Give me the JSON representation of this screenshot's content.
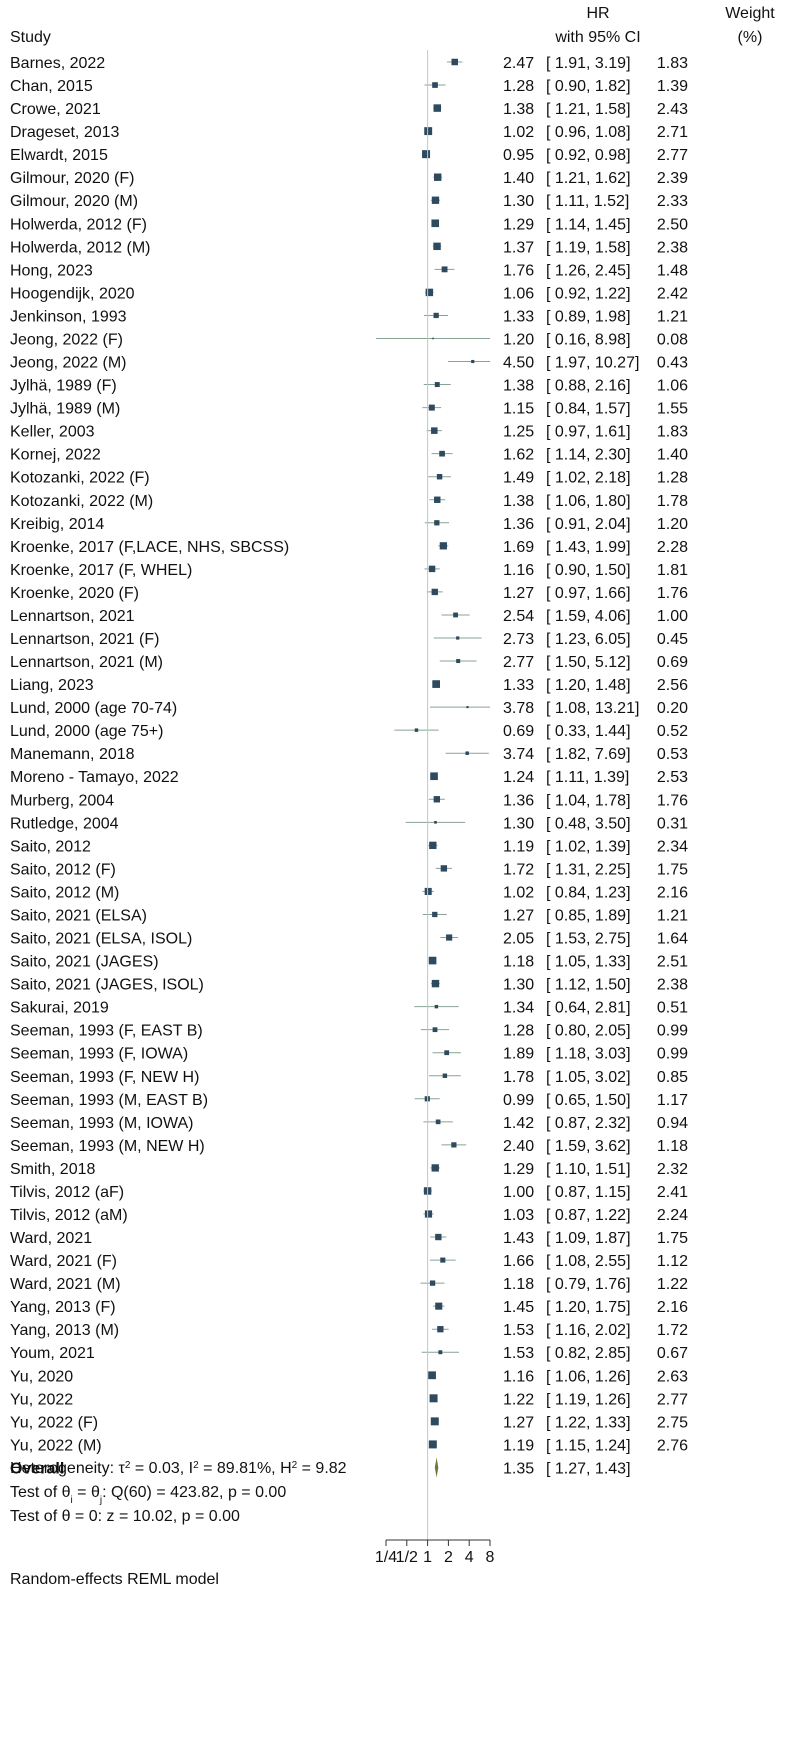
{
  "chart_data": {
    "type": "forest",
    "header": {
      "study": "Study",
      "hr_line1": "HR",
      "hr_line2": "with 95% CI",
      "weight_line1": "Weight",
      "weight_line2": "(%)"
    },
    "x_scale": "log2",
    "xlim": [
      0.25,
      8
    ],
    "x_ticks": [
      0.25,
      0.5,
      1,
      2,
      4,
      8
    ],
    "x_tick_labels": [
      "1/4",
      "1/2",
      "1",
      "2",
      "4",
      "8"
    ],
    "reference_line": 1,
    "marker_color": "#2e4a5e",
    "ci_color": "#8aa292",
    "diamond_color": "#6b7d3a",
    "studies": [
      {
        "label": "Barnes, 2022",
        "hr": 2.47,
        "lo": 1.91,
        "hi": 3.19,
        "hr_text": "2.47",
        "ci_text": "[ 1.91,  3.19]",
        "weight": 1.83,
        "weight_text": "1.83"
      },
      {
        "label": "Chan, 2015",
        "hr": 1.28,
        "lo": 0.9,
        "hi": 1.82,
        "hr_text": "1.28",
        "ci_text": "[ 0.90,  1.82]",
        "weight": 1.39,
        "weight_text": "1.39"
      },
      {
        "label": "Crowe, 2021",
        "hr": 1.38,
        "lo": 1.21,
        "hi": 1.58,
        "hr_text": "1.38",
        "ci_text": "[ 1.21,  1.58]",
        "weight": 2.43,
        "weight_text": "2.43"
      },
      {
        "label": "Drageset, 2013",
        "hr": 1.02,
        "lo": 0.96,
        "hi": 1.08,
        "hr_text": "1.02",
        "ci_text": "[ 0.96,  1.08]",
        "weight": 2.71,
        "weight_text": "2.71"
      },
      {
        "label": "Elwardt, 2015",
        "hr": 0.95,
        "lo": 0.92,
        "hi": 0.98,
        "hr_text": "0.95",
        "ci_text": "[ 0.92,  0.98]",
        "weight": 2.77,
        "weight_text": "2.77"
      },
      {
        "label": "Gilmour, 2020 (F)",
        "hr": 1.4,
        "lo": 1.21,
        "hi": 1.62,
        "hr_text": "1.40",
        "ci_text": "[ 1.21,  1.62]",
        "weight": 2.39,
        "weight_text": "2.39"
      },
      {
        "label": "Gilmour, 2020 (M)",
        "hr": 1.3,
        "lo": 1.11,
        "hi": 1.52,
        "hr_text": "1.30",
        "ci_text": "[ 1.11,  1.52]",
        "weight": 2.33,
        "weight_text": "2.33"
      },
      {
        "label": "Holwerda, 2012 (F)",
        "hr": 1.29,
        "lo": 1.14,
        "hi": 1.45,
        "hr_text": "1.29",
        "ci_text": "[ 1.14,  1.45]",
        "weight": 2.5,
        "weight_text": "2.50"
      },
      {
        "label": "Holwerda, 2012 (M)",
        "hr": 1.37,
        "lo": 1.19,
        "hi": 1.58,
        "hr_text": "1.37",
        "ci_text": "[ 1.19,  1.58]",
        "weight": 2.38,
        "weight_text": "2.38"
      },
      {
        "label": "Hong, 2023",
        "hr": 1.76,
        "lo": 1.26,
        "hi": 2.45,
        "hr_text": "1.76",
        "ci_text": "[ 1.26,  2.45]",
        "weight": 1.48,
        "weight_text": "1.48"
      },
      {
        "label": "Hoogendijk, 2020",
        "hr": 1.06,
        "lo": 0.92,
        "hi": 1.22,
        "hr_text": "1.06",
        "ci_text": "[ 0.92,  1.22]",
        "weight": 2.42,
        "weight_text": "2.42"
      },
      {
        "label": "Jenkinson,  1993",
        "hr": 1.33,
        "lo": 0.89,
        "hi": 1.98,
        "hr_text": "1.33",
        "ci_text": "[ 0.89,  1.98]",
        "weight": 1.21,
        "weight_text": "1.21"
      },
      {
        "label": "Jeong, 2022 (F)",
        "hr": 1.2,
        "lo": 0.16,
        "hi": 8.98,
        "hr_text": "1.20",
        "ci_text": "[ 0.16,  8.98]",
        "weight": 0.08,
        "weight_text": "0.08"
      },
      {
        "label": "Jeong, 2022 (M)",
        "hr": 4.5,
        "lo": 1.97,
        "hi": 10.27,
        "hr_text": "4.50",
        "ci_text": "[ 1.97, 10.27]",
        "weight": 0.43,
        "weight_text": "0.43"
      },
      {
        "label": "Jylhä, 1989 (F)",
        "hr": 1.38,
        "lo": 0.88,
        "hi": 2.16,
        "hr_text": "1.38",
        "ci_text": "[ 0.88,  2.16]",
        "weight": 1.06,
        "weight_text": "1.06"
      },
      {
        "label": "Jylhä, 1989 (M)",
        "hr": 1.15,
        "lo": 0.84,
        "hi": 1.57,
        "hr_text": "1.15",
        "ci_text": "[ 0.84,  1.57]",
        "weight": 1.55,
        "weight_text": "1.55"
      },
      {
        "label": "Keller, 2003",
        "hr": 1.25,
        "lo": 0.97,
        "hi": 1.61,
        "hr_text": "1.25",
        "ci_text": "[ 0.97,  1.61]",
        "weight": 1.83,
        "weight_text": "1.83"
      },
      {
        "label": "Kornej, 2022",
        "hr": 1.62,
        "lo": 1.14,
        "hi": 2.3,
        "hr_text": "1.62",
        "ci_text": "[ 1.14,  2.30]",
        "weight": 1.4,
        "weight_text": "1.40"
      },
      {
        "label": "Kotozanki, 2022 (F)",
        "hr": 1.49,
        "lo": 1.02,
        "hi": 2.18,
        "hr_text": "1.49",
        "ci_text": "[ 1.02,  2.18]",
        "weight": 1.28,
        "weight_text": "1.28"
      },
      {
        "label": "Kotozanki, 2022 (M)",
        "hr": 1.38,
        "lo": 1.06,
        "hi": 1.8,
        "hr_text": "1.38",
        "ci_text": "[ 1.06,  1.80]",
        "weight": 1.78,
        "weight_text": "1.78"
      },
      {
        "label": "Kreibig, 2014",
        "hr": 1.36,
        "lo": 0.91,
        "hi": 2.04,
        "hr_text": "1.36",
        "ci_text": "[ 0.91,  2.04]",
        "weight": 1.2,
        "weight_text": "1.20"
      },
      {
        "label": "Kroenke, 2017 (F,LACE, NHS, SBCSS)",
        "hr": 1.69,
        "lo": 1.43,
        "hi": 1.99,
        "hr_text": "1.69",
        "ci_text": "[ 1.43,  1.99]",
        "weight": 2.28,
        "weight_text": "2.28"
      },
      {
        "label": "Kroenke, 2017 (F, WHEL)",
        "hr": 1.16,
        "lo": 0.9,
        "hi": 1.5,
        "hr_text": "1.16",
        "ci_text": "[ 0.90,  1.50]",
        "weight": 1.81,
        "weight_text": "1.81"
      },
      {
        "label": "Kroenke, 2020 (F)",
        "hr": 1.27,
        "lo": 0.97,
        "hi": 1.66,
        "hr_text": "1.27",
        "ci_text": "[ 0.97,  1.66]",
        "weight": 1.76,
        "weight_text": "1.76"
      },
      {
        "label": "Lennartson, 2021",
        "hr": 2.54,
        "lo": 1.59,
        "hi": 4.06,
        "hr_text": "2.54",
        "ci_text": "[ 1.59,  4.06]",
        "weight": 1.0,
        "weight_text": "1.00"
      },
      {
        "label": "Lennartson, 2021 (F)",
        "hr": 2.73,
        "lo": 1.23,
        "hi": 6.05,
        "hr_text": "2.73",
        "ci_text": "[ 1.23,  6.05]",
        "weight": 0.45,
        "weight_text": "0.45"
      },
      {
        "label": "Lennartson, 2021 (M)",
        "hr": 2.77,
        "lo": 1.5,
        "hi": 5.12,
        "hr_text": "2.77",
        "ci_text": "[ 1.50,  5.12]",
        "weight": 0.69,
        "weight_text": "0.69"
      },
      {
        "label": "Liang, 2023",
        "hr": 1.33,
        "lo": 1.2,
        "hi": 1.48,
        "hr_text": "1.33",
        "ci_text": "[ 1.20,  1.48]",
        "weight": 2.56,
        "weight_text": "2.56"
      },
      {
        "label": "Lund, 2000 (age 70-74)",
        "hr": 3.78,
        "lo": 1.08,
        "hi": 13.21,
        "hr_text": "3.78",
        "ci_text": "[ 1.08, 13.21]",
        "weight": 0.2,
        "weight_text": "0.20"
      },
      {
        "label": "Lund, 2000 (age 75+)",
        "hr": 0.69,
        "lo": 0.33,
        "hi": 1.44,
        "hr_text": "0.69",
        "ci_text": "[ 0.33,  1.44]",
        "weight": 0.52,
        "weight_text": "0.52"
      },
      {
        "label": "Manemann, 2018",
        "hr": 3.74,
        "lo": 1.82,
        "hi": 7.69,
        "hr_text": "3.74",
        "ci_text": "[ 1.82,  7.69]",
        "weight": 0.53,
        "weight_text": "0.53"
      },
      {
        "label": "Moreno - Tamayo, 2022",
        "hr": 1.24,
        "lo": 1.11,
        "hi": 1.39,
        "hr_text": "1.24",
        "ci_text": "[ 1.11,  1.39]",
        "weight": 2.53,
        "weight_text": "2.53"
      },
      {
        "label": "Murberg, 2004",
        "hr": 1.36,
        "lo": 1.04,
        "hi": 1.78,
        "hr_text": "1.36",
        "ci_text": "[ 1.04,  1.78]",
        "weight": 1.76,
        "weight_text": "1.76"
      },
      {
        "label": "Rutledge, 2004",
        "hr": 1.3,
        "lo": 0.48,
        "hi": 3.5,
        "hr_text": "1.30",
        "ci_text": "[ 0.48,  3.50]",
        "weight": 0.31,
        "weight_text": "0.31"
      },
      {
        "label": "Saito, 2012",
        "hr": 1.19,
        "lo": 1.02,
        "hi": 1.39,
        "hr_text": "1.19",
        "ci_text": "[ 1.02,  1.39]",
        "weight": 2.34,
        "weight_text": "2.34"
      },
      {
        "label": "Saito, 2012 (F)",
        "hr": 1.72,
        "lo": 1.31,
        "hi": 2.25,
        "hr_text": "1.72",
        "ci_text": "[ 1.31,  2.25]",
        "weight": 1.75,
        "weight_text": "1.75"
      },
      {
        "label": "Saito, 2012 (M)",
        "hr": 1.02,
        "lo": 0.84,
        "hi": 1.23,
        "hr_text": "1.02",
        "ci_text": "[ 0.84,  1.23]",
        "weight": 2.16,
        "weight_text": "2.16"
      },
      {
        "label": "Saito, 2021 (ELSA)",
        "hr": 1.27,
        "lo": 0.85,
        "hi": 1.89,
        "hr_text": "1.27",
        "ci_text": "[ 0.85,  1.89]",
        "weight": 1.21,
        "weight_text": "1.21"
      },
      {
        "label": "Saito, 2021 (ELSA, ISOL)",
        "hr": 2.05,
        "lo": 1.53,
        "hi": 2.75,
        "hr_text": "2.05",
        "ci_text": "[ 1.53,  2.75]",
        "weight": 1.64,
        "weight_text": "1.64"
      },
      {
        "label": "Saito, 2021 (JAGES)",
        "hr": 1.18,
        "lo": 1.05,
        "hi": 1.33,
        "hr_text": "1.18",
        "ci_text": "[ 1.05,  1.33]",
        "weight": 2.51,
        "weight_text": "2.51"
      },
      {
        "label": "Saito, 2021 (JAGES, ISOL)",
        "hr": 1.3,
        "lo": 1.12,
        "hi": 1.5,
        "hr_text": "1.30",
        "ci_text": "[ 1.12,  1.50]",
        "weight": 2.38,
        "weight_text": "2.38"
      },
      {
        "label": "Sakurai, 2019",
        "hr": 1.34,
        "lo": 0.64,
        "hi": 2.81,
        "hr_text": "1.34",
        "ci_text": "[ 0.64,  2.81]",
        "weight": 0.51,
        "weight_text": "0.51"
      },
      {
        "label": "Seeman, 1993 (F, EAST B)",
        "hr": 1.28,
        "lo": 0.8,
        "hi": 2.05,
        "hr_text": "1.28",
        "ci_text": "[ 0.80,  2.05]",
        "weight": 0.99,
        "weight_text": "0.99"
      },
      {
        "label": "Seeman, 1993 (F, IOWA)",
        "hr": 1.89,
        "lo": 1.18,
        "hi": 3.03,
        "hr_text": "1.89",
        "ci_text": "[ 1.18,  3.03]",
        "weight": 0.99,
        "weight_text": "0.99"
      },
      {
        "label": "Seeman, 1993 (F, NEW H)",
        "hr": 1.78,
        "lo": 1.05,
        "hi": 3.02,
        "hr_text": "1.78",
        "ci_text": "[ 1.05,  3.02]",
        "weight": 0.85,
        "weight_text": "0.85"
      },
      {
        "label": "Seeman, 1993 (M, EAST B)",
        "hr": 0.99,
        "lo": 0.65,
        "hi": 1.5,
        "hr_text": "0.99",
        "ci_text": "[ 0.65,  1.50]",
        "weight": 1.17,
        "weight_text": "1.17"
      },
      {
        "label": "Seeman, 1993 (M, IOWA)",
        "hr": 1.42,
        "lo": 0.87,
        "hi": 2.32,
        "hr_text": "1.42",
        "ci_text": "[ 0.87,  2.32]",
        "weight": 0.94,
        "weight_text": "0.94"
      },
      {
        "label": "Seeman, 1993 (M, NEW H)",
        "hr": 2.4,
        "lo": 1.59,
        "hi": 3.62,
        "hr_text": "2.40",
        "ci_text": "[ 1.59,  3.62]",
        "weight": 1.18,
        "weight_text": "1.18"
      },
      {
        "label": "Smith, 2018",
        "hr": 1.29,
        "lo": 1.1,
        "hi": 1.51,
        "hr_text": "1.29",
        "ci_text": "[ 1.10,  1.51]",
        "weight": 2.32,
        "weight_text": "2.32"
      },
      {
        "label": "Tilvis, 2012 (aF)",
        "hr": 1.0,
        "lo": 0.87,
        "hi": 1.15,
        "hr_text": "1.00",
        "ci_text": "[ 0.87,  1.15]",
        "weight": 2.41,
        "weight_text": "2.41"
      },
      {
        "label": "Tilvis, 2012 (aM)",
        "hr": 1.03,
        "lo": 0.87,
        "hi": 1.22,
        "hr_text": "1.03",
        "ci_text": "[ 0.87,  1.22]",
        "weight": 2.24,
        "weight_text": "2.24"
      },
      {
        "label": "Ward, 2021",
        "hr": 1.43,
        "lo": 1.09,
        "hi": 1.87,
        "hr_text": "1.43",
        "ci_text": "[ 1.09,  1.87]",
        "weight": 1.75,
        "weight_text": "1.75"
      },
      {
        "label": "Ward, 2021 (F)",
        "hr": 1.66,
        "lo": 1.08,
        "hi": 2.55,
        "hr_text": "1.66",
        "ci_text": "[ 1.08,  2.55]",
        "weight": 1.12,
        "weight_text": "1.12"
      },
      {
        "label": "Ward, 2021 (M)",
        "hr": 1.18,
        "lo": 0.79,
        "hi": 1.76,
        "hr_text": "1.18",
        "ci_text": "[ 0.79,  1.76]",
        "weight": 1.22,
        "weight_text": "1.22"
      },
      {
        "label": "Yang, 2013 (F)",
        "hr": 1.45,
        "lo": 1.2,
        "hi": 1.75,
        "hr_text": "1.45",
        "ci_text": "[ 1.20,  1.75]",
        "weight": 2.16,
        "weight_text": "2.16"
      },
      {
        "label": "Yang, 2013 (M)",
        "hr": 1.53,
        "lo": 1.16,
        "hi": 2.02,
        "hr_text": "1.53",
        "ci_text": "[ 1.16,  2.02]",
        "weight": 1.72,
        "weight_text": "1.72"
      },
      {
        "label": "Youm, 2021",
        "hr": 1.53,
        "lo": 0.82,
        "hi": 2.85,
        "hr_text": "1.53",
        "ci_text": "[ 0.82,  2.85]",
        "weight": 0.67,
        "weight_text": "0.67"
      },
      {
        "label": "Yu, 2020",
        "hr": 1.16,
        "lo": 1.06,
        "hi": 1.26,
        "hr_text": "1.16",
        "ci_text": "[ 1.06,  1.26]",
        "weight": 2.63,
        "weight_text": "2.63"
      },
      {
        "label": "Yu, 2022",
        "hr": 1.22,
        "lo": 1.19,
        "hi": 1.26,
        "hr_text": "1.22",
        "ci_text": "[ 1.19,  1.26]",
        "weight": 2.77,
        "weight_text": "2.77"
      },
      {
        "label": "Yu, 2022 (F)",
        "hr": 1.27,
        "lo": 1.22,
        "hi": 1.33,
        "hr_text": "1.27",
        "ci_text": "[ 1.22,  1.33]",
        "weight": 2.75,
        "weight_text": "2.75"
      },
      {
        "label": "Yu, 2022 (M)",
        "hr": 1.19,
        "lo": 1.15,
        "hi": 1.24,
        "hr_text": "1.19",
        "ci_text": "[ 1.15,  1.24]",
        "weight": 2.76,
        "weight_text": "2.76"
      }
    ],
    "overall": {
      "label": "Overall",
      "hr": 1.35,
      "lo": 1.27,
      "hi": 1.43,
      "hr_text": "1.35",
      "ci_text": "[ 1.27,  1.43]"
    },
    "heterogeneity": {
      "prefix": "Heterogeneity: τ",
      "tau2": "= 0.03, I",
      "i2": "= 89.81%, H",
      "h2": "= 9.82"
    },
    "test_equal": {
      "prefix": "Test of θ",
      "eq": " = θ",
      "rest": ": Q(60) = 423.82, p = 0.00"
    },
    "test_zero": "Test of θ = 0: z = 10.02, p = 0.00",
    "model_note": "Random-effects REML model"
  }
}
